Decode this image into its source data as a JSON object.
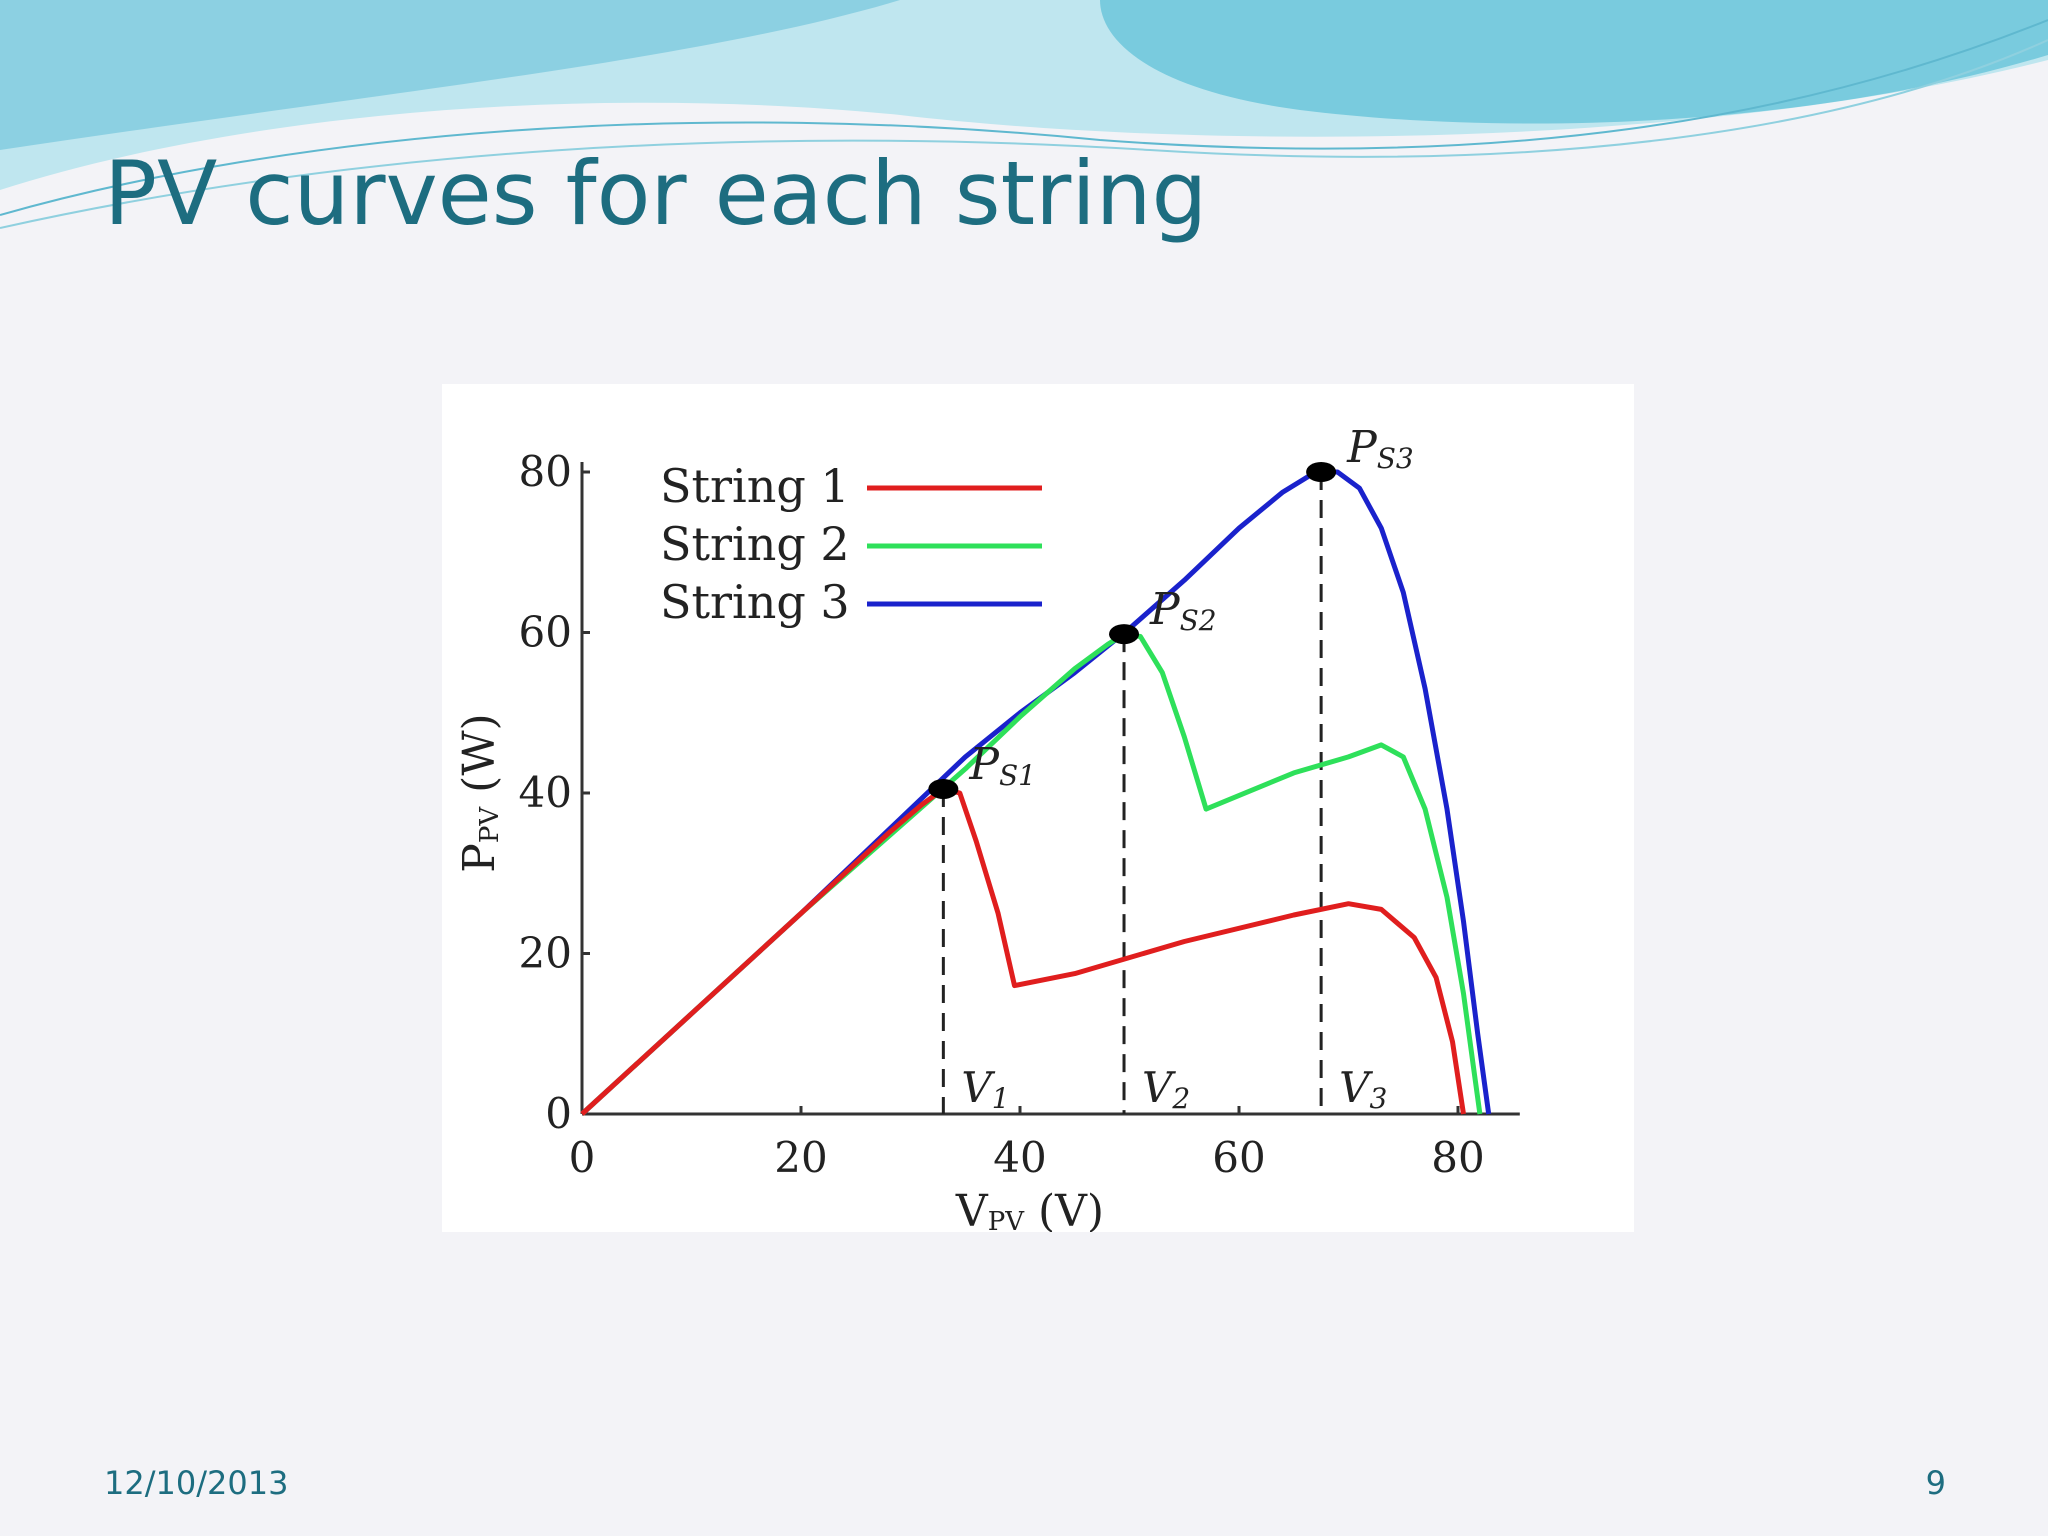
{
  "slide": {
    "title": "PV curves for each string",
    "date": "12/10/2013",
    "page_number": "9"
  },
  "colors": {
    "title": "#1d6d80",
    "wave_light": "#bfe6ef",
    "wave_mid": "#7fcadf",
    "wave_dark": "#3fb4cf"
  },
  "chart_data": {
    "type": "line",
    "xlabel": "V",
    "xlabel_sub": "PV",
    "xlabel_unit": " (V)",
    "ylabel": "P",
    "ylabel_sub": "PV",
    "ylabel_unit": " (W)",
    "xlim": [
      0,
      84
    ],
    "ylim": [
      0,
      80
    ],
    "x_ticks": [
      0,
      20,
      40,
      60,
      80
    ],
    "y_ticks": [
      0,
      20,
      40,
      60,
      80
    ],
    "grid": false,
    "legend_position": "top-left",
    "series": [
      {
        "name": "String 1",
        "color": "#e01e1e",
        "points": [
          [
            0,
            0
          ],
          [
            10,
            12.5
          ],
          [
            20,
            25
          ],
          [
            28,
            35
          ],
          [
            31,
            38.5
          ],
          [
            33,
            40.5
          ],
          [
            34.5,
            40
          ],
          [
            36,
            34
          ],
          [
            38,
            25
          ],
          [
            39.5,
            16
          ],
          [
            45,
            17.5
          ],
          [
            55,
            21.5
          ],
          [
            65,
            24.8
          ],
          [
            70,
            26.2
          ],
          [
            73,
            25.5
          ],
          [
            76,
            22
          ],
          [
            78,
            17
          ],
          [
            79.5,
            9
          ],
          [
            80.5,
            0
          ]
        ]
      },
      {
        "name": "String 2",
        "color": "#2ee05a",
        "points": [
          [
            0,
            0
          ],
          [
            10,
            12.5
          ],
          [
            20,
            25
          ],
          [
            30,
            37
          ],
          [
            35,
            43
          ],
          [
            40,
            49.5
          ],
          [
            45,
            55.5
          ],
          [
            48,
            58.5
          ],
          [
            49.5,
            59.8
          ],
          [
            51,
            59.5
          ],
          [
            53,
            55
          ],
          [
            55,
            47
          ],
          [
            57,
            38
          ],
          [
            65,
            42.5
          ],
          [
            70,
            44.5
          ],
          [
            73,
            46
          ],
          [
            75,
            44.5
          ],
          [
            77,
            38
          ],
          [
            79,
            27
          ],
          [
            80.5,
            15
          ],
          [
            81.5,
            5
          ],
          [
            82,
            0
          ]
        ]
      },
      {
        "name": "String 3",
        "color": "#1a22cc",
        "points": [
          [
            0,
            0
          ],
          [
            10,
            12.5
          ],
          [
            20,
            25
          ],
          [
            30,
            38
          ],
          [
            35,
            44.5
          ],
          [
            40,
            50
          ],
          [
            45,
            55
          ],
          [
            50,
            60.5
          ],
          [
            55,
            66.5
          ],
          [
            60,
            73
          ],
          [
            64,
            77.5
          ],
          [
            67,
            80
          ],
          [
            69,
            80
          ],
          [
            71,
            78
          ],
          [
            73,
            73
          ],
          [
            75,
            65
          ],
          [
            77,
            53
          ],
          [
            79,
            38
          ],
          [
            80.5,
            24
          ],
          [
            81.8,
            10
          ],
          [
            82.8,
            0
          ]
        ]
      }
    ],
    "markers": [
      {
        "label": "P",
        "sub": "S1",
        "x": 33,
        "y": 40.5,
        "vline_label": "V",
        "vline_sub": "1"
      },
      {
        "label": "P",
        "sub": "S2",
        "x": 49.5,
        "y": 59.8,
        "vline_label": "V",
        "vline_sub": "2"
      },
      {
        "label": "P",
        "sub": "S3",
        "x": 67.5,
        "y": 80,
        "vline_label": "V",
        "vline_sub": "3"
      }
    ]
  }
}
